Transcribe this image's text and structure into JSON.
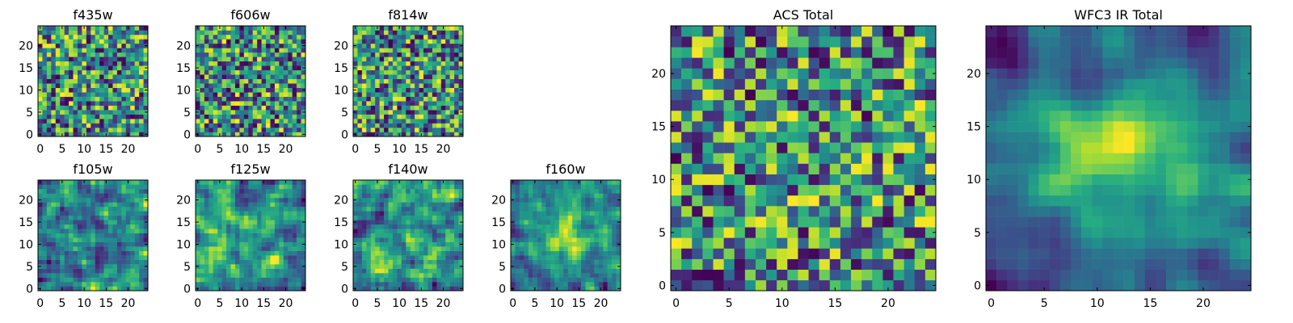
{
  "figure_title": "",
  "chart_data": [
    {
      "type": "heatmap",
      "title": "f435w",
      "grid_size": 25,
      "xticks": [
        0,
        5,
        10,
        15,
        20
      ],
      "yticks": [
        0,
        5,
        10,
        15,
        20
      ],
      "xlim": [
        -0.5,
        24.5
      ],
      "ylim": [
        -0.5,
        24.5
      ],
      "colormap": "viridis",
      "smoothness": 0,
      "seed": 11
    },
    {
      "type": "heatmap",
      "title": "f606w",
      "grid_size": 25,
      "xticks": [
        0,
        5,
        10,
        15,
        20
      ],
      "yticks": [
        0,
        5,
        10,
        15,
        20
      ],
      "xlim": [
        -0.5,
        24.5
      ],
      "ylim": [
        -0.5,
        24.5
      ],
      "colormap": "viridis",
      "smoothness": 0,
      "seed": 23
    },
    {
      "type": "heatmap",
      "title": "f814w",
      "grid_size": 25,
      "xticks": [
        0,
        5,
        10,
        15,
        20
      ],
      "yticks": [
        0,
        5,
        10,
        15,
        20
      ],
      "xlim": [
        -0.5,
        24.5
      ],
      "ylim": [
        -0.5,
        24.5
      ],
      "colormap": "viridis",
      "smoothness": 0,
      "seed": 37
    },
    {
      "type": "heatmap",
      "title": "f105w",
      "grid_size": 25,
      "xticks": [
        0,
        5,
        10,
        15,
        20
      ],
      "yticks": [
        0,
        5,
        10,
        15,
        20
      ],
      "xlim": [
        -0.5,
        24.5
      ],
      "ylim": [
        -0.5,
        24.5
      ],
      "colormap": "viridis",
      "smoothness": 1,
      "seed": 41
    },
    {
      "type": "heatmap",
      "title": "f125w",
      "grid_size": 25,
      "xticks": [
        0,
        5,
        10,
        15,
        20
      ],
      "yticks": [
        0,
        5,
        10,
        15,
        20
      ],
      "xlim": [
        -0.5,
        24.5
      ],
      "ylim": [
        -0.5,
        24.5
      ],
      "colormap": "viridis",
      "smoothness": 1,
      "seed": 53
    },
    {
      "type": "heatmap",
      "title": "f140w",
      "grid_size": 25,
      "xticks": [
        0,
        5,
        10,
        15,
        20
      ],
      "yticks": [
        0,
        5,
        10,
        15,
        20
      ],
      "xlim": [
        -0.5,
        24.5
      ],
      "ylim": [
        -0.5,
        24.5
      ],
      "colormap": "viridis",
      "smoothness": 1,
      "seed": 67
    },
    {
      "type": "heatmap",
      "title": "f160w",
      "grid_size": 25,
      "xticks": [
        0,
        5,
        10,
        15,
        20
      ],
      "yticks": [
        0,
        5,
        10,
        15,
        20
      ],
      "xlim": [
        -0.5,
        24.5
      ],
      "ylim": [
        -0.5,
        24.5
      ],
      "colormap": "viridis",
      "smoothness": 1,
      "central_peak": 0.35,
      "seed": 79
    },
    {
      "type": "heatmap",
      "title": "ACS Total",
      "grid_size": 25,
      "xticks": [
        0,
        5,
        10,
        15,
        20
      ],
      "yticks": [
        0,
        5,
        10,
        15,
        20
      ],
      "xlim": [
        -0.5,
        24.5
      ],
      "ylim": [
        -0.5,
        24.5
      ],
      "colormap": "viridis",
      "smoothness": 0,
      "bias": 0.12,
      "seed": 97
    },
    {
      "type": "heatmap",
      "title": "WFC3 IR Total",
      "grid_size": 25,
      "xticks": [
        0,
        5,
        10,
        15,
        20
      ],
      "yticks": [
        0,
        5,
        10,
        15,
        20
      ],
      "xlim": [
        -0.5,
        24.5
      ],
      "ylim": [
        -0.5,
        24.5
      ],
      "colormap": "viridis",
      "smoothness": 2,
      "central_peak": 0.45,
      "seed": 109
    }
  ]
}
